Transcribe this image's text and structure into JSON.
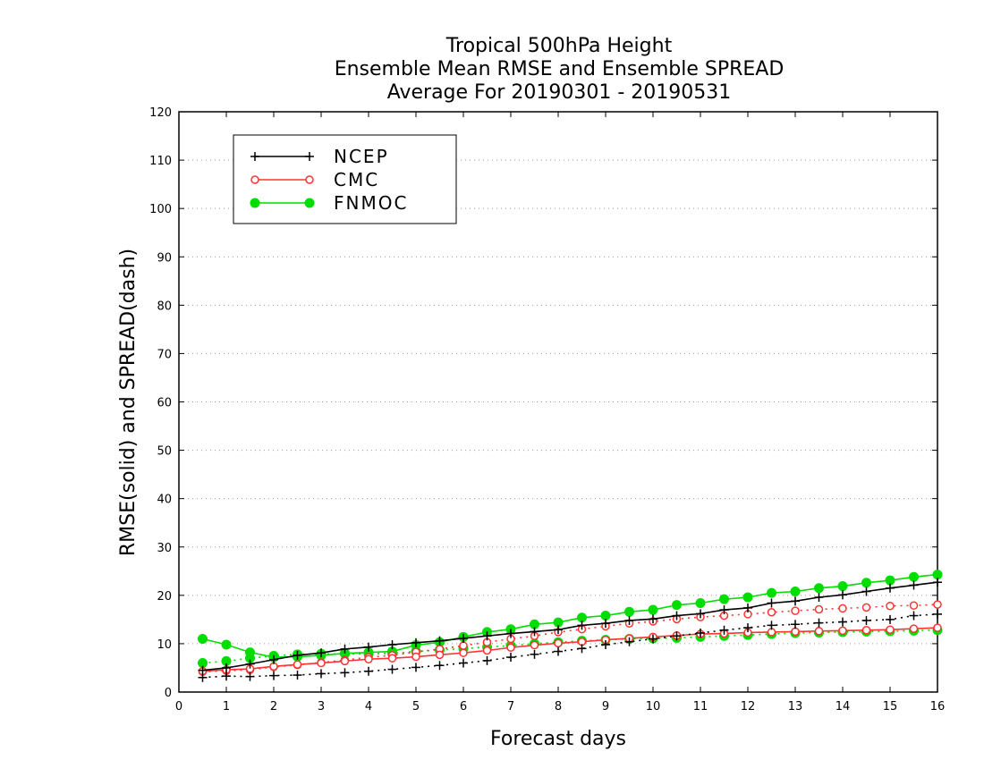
{
  "chart_data": {
    "type": "line",
    "title": [
      "Tropical 500hPa Height",
      "Ensemble Mean RMSE and Ensemble SPREAD",
      "Average For 20190301 - 20190531"
    ],
    "xlabel": "Forecast days",
    "ylabel": "RMSE(solid) and SPREAD(dash)",
    "xlim": [
      0,
      16
    ],
    "ylim": [
      0,
      120
    ],
    "xticks": [
      0,
      1,
      2,
      3,
      4,
      5,
      6,
      7,
      8,
      9,
      10,
      11,
      12,
      13,
      14,
      15,
      16
    ],
    "yticks": [
      0,
      10,
      20,
      30,
      40,
      50,
      60,
      70,
      80,
      90,
      100,
      110,
      120
    ],
    "grid": "horizontal-dotted",
    "legend_position": "top-left",
    "x": [
      0.5,
      1,
      1.5,
      2,
      2.5,
      3,
      3.5,
      4,
      4.5,
      5,
      5.5,
      6,
      6.5,
      7,
      7.5,
      8,
      8.5,
      9,
      9.5,
      10,
      10.5,
      11,
      11.5,
      12,
      12.5,
      13,
      13.5,
      14,
      14.5,
      15,
      15.5,
      16
    ],
    "series": [
      {
        "name": "NCEP",
        "color": "#000000",
        "marker": "plus",
        "rmse": [
          4.5,
          5.0,
          5.8,
          6.7,
          7.6,
          8.1,
          8.9,
          9.3,
          9.8,
          10.2,
          10.6,
          11.1,
          11.6,
          12.1,
          12.5,
          12.9,
          13.8,
          14.2,
          14.8,
          15.1,
          15.8,
          16.2,
          17.0,
          17.4,
          18.4,
          18.8,
          19.6,
          20.1,
          20.8,
          21.5,
          22.1,
          22.7
        ],
        "spread": [
          3.0,
          3.3,
          3.2,
          3.4,
          3.5,
          3.8,
          4.0,
          4.3,
          4.7,
          5.1,
          5.5,
          6.0,
          6.5,
          7.2,
          7.8,
          8.4,
          9.0,
          9.8,
          10.4,
          11.0,
          11.6,
          12.2,
          12.8,
          13.3,
          13.8,
          14.0,
          14.3,
          14.5,
          14.8,
          15.0,
          15.8,
          16.1
        ]
      },
      {
        "name": "CMC",
        "color": "#ff3333",
        "marker": "open-circle",
        "rmse": [
          4.3,
          4.6,
          4.8,
          5.3,
          5.7,
          6.0,
          6.4,
          6.8,
          7.0,
          7.3,
          7.7,
          8.1,
          8.6,
          9.2,
          9.7,
          10.1,
          10.4,
          10.8,
          11.1,
          11.4,
          11.7,
          12.0,
          12.1,
          12.3,
          12.4,
          12.5,
          12.6,
          12.7,
          12.8,
          12.9,
          13.1,
          13.3
        ],
        "spread": [
          4.2,
          4.4,
          4.6,
          5.2,
          5.6,
          6.1,
          6.6,
          7.2,
          7.6,
          8.3,
          8.9,
          9.6,
          10.3,
          11.0,
          11.6,
          12.4,
          13.0,
          13.6,
          14.2,
          14.6,
          15.1,
          15.5,
          15.8,
          16.1,
          16.5,
          16.8,
          17.1,
          17.3,
          17.5,
          17.8,
          17.9,
          18.1
        ]
      },
      {
        "name": "FNMOC",
        "color": "#00dd00",
        "marker": "filled-circle",
        "rmse": [
          11.0,
          9.8,
          8.2,
          7.2,
          7.3,
          7.6,
          8.0,
          8.2,
          8.4,
          9.7,
          10.3,
          11.4,
          12.4,
          13.0,
          14.0,
          14.4,
          15.4,
          15.8,
          16.6,
          17.0,
          18.0,
          18.4,
          19.2,
          19.6,
          20.5,
          20.8,
          21.5,
          21.9,
          22.6,
          23.1,
          23.8,
          24.3
        ],
        "spread": [
          6.0,
          6.4,
          7.0,
          7.5,
          7.8,
          7.9,
          7.9,
          7.9,
          8.0,
          8.4,
          8.7,
          9.0,
          9.3,
          9.6,
          10.0,
          10.3,
          10.6,
          10.8,
          11.0,
          11.1,
          11.2,
          11.4,
          11.6,
          11.8,
          12.0,
          12.2,
          12.3,
          12.4,
          12.5,
          12.6,
          12.7,
          12.8
        ]
      }
    ]
  }
}
